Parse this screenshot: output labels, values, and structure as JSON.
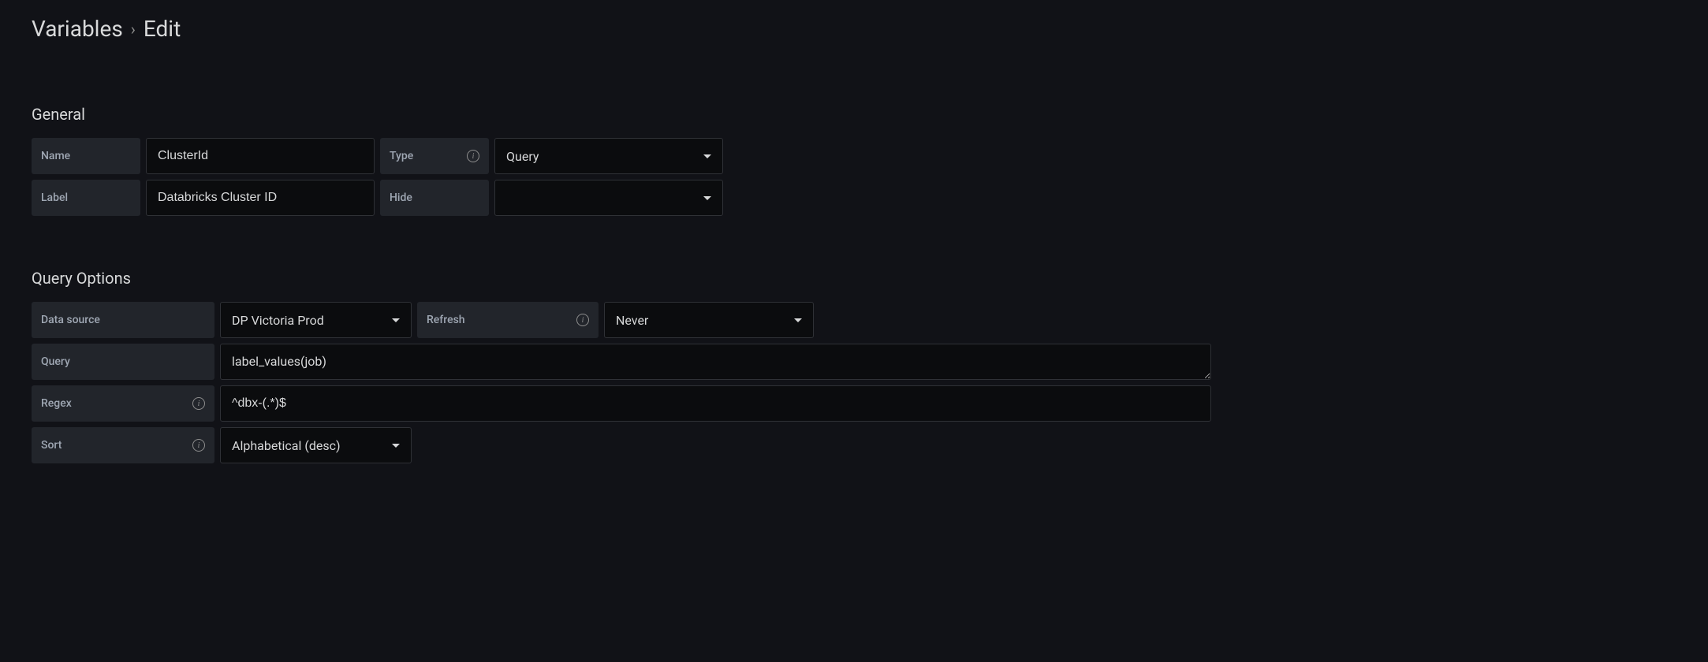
{
  "header": {
    "breadcrumb_root": "Variables",
    "breadcrumb_leaf": "Edit"
  },
  "sections": {
    "general": {
      "title": "General",
      "fields": {
        "name_label": "Name",
        "name_value": "ClusterId",
        "type_label": "Type",
        "type_value": "Query",
        "label_label": "Label",
        "label_value": "Databricks Cluster ID",
        "hide_label": "Hide",
        "hide_value": ""
      }
    },
    "query_options": {
      "title": "Query Options",
      "fields": {
        "datasource_label": "Data source",
        "datasource_value": "DP Victoria Prod",
        "refresh_label": "Refresh",
        "refresh_value": "Never",
        "query_label": "Query",
        "query_value": "label_values(job)",
        "regex_label": "Regex",
        "regex_value": "^dbx-(.*)$",
        "sort_label": "Sort",
        "sort_value": "Alphabetical (desc)"
      }
    }
  },
  "colors": {
    "background": "#111217",
    "input_bg": "#0b0c0e",
    "label_bg": "#22252b",
    "border": "#2f3136",
    "text_primary": "#d8d9da",
    "text_label": "#9fa7b3"
  }
}
